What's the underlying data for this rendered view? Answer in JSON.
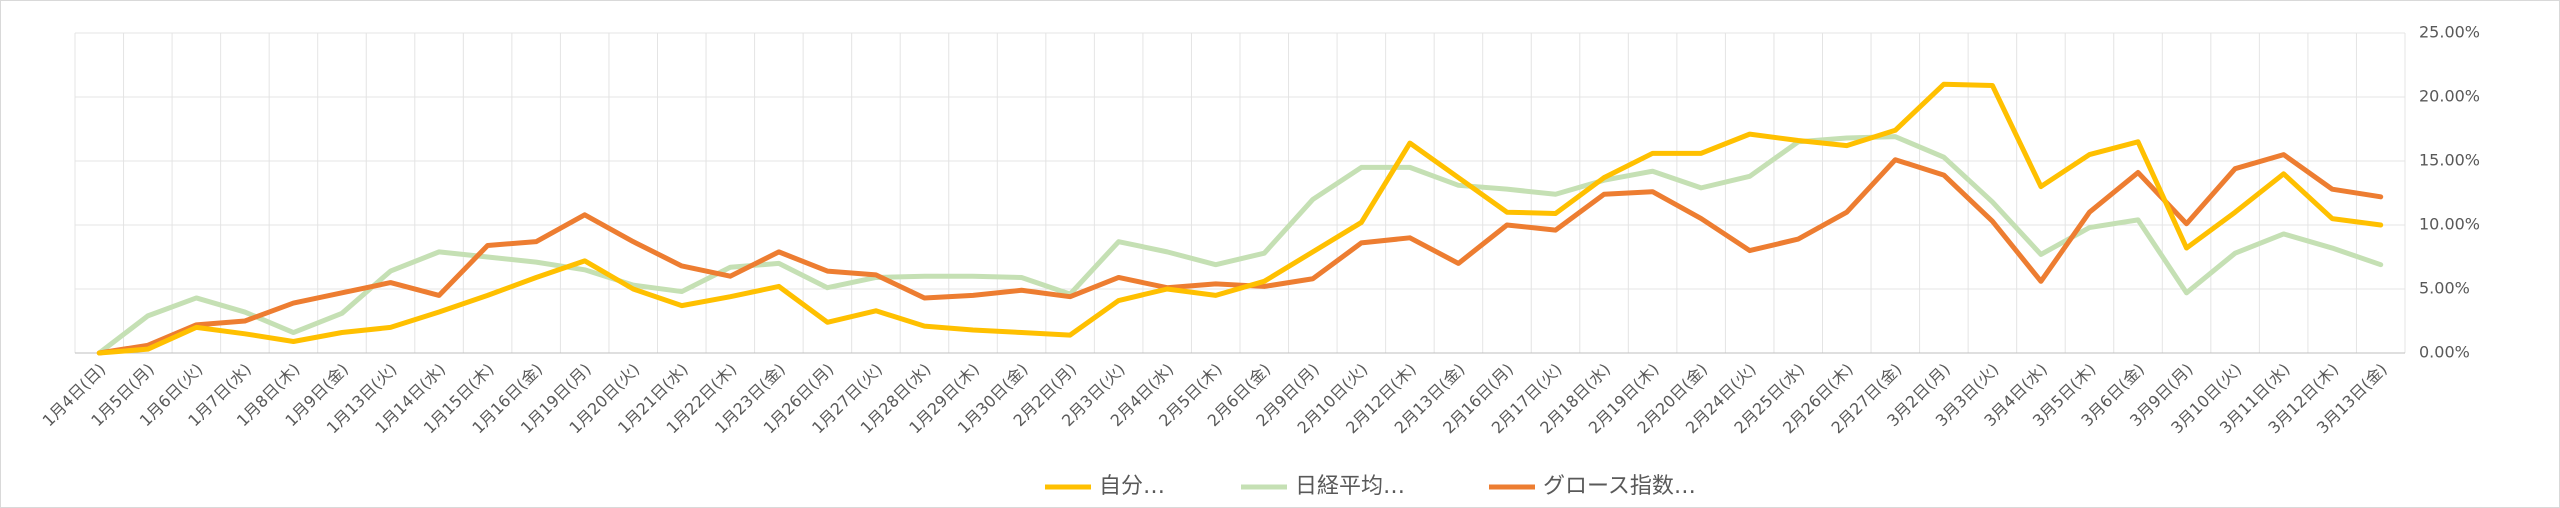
{
  "chart_data": {
    "type": "line",
    "categories": [
      "1月4日(日)",
      "1月5日(月)",
      "1月6日(火)",
      "1月7日(水)",
      "1月8日(木)",
      "1月9日(金)",
      "1月13日(火)",
      "1月14日(水)",
      "1月15日(木)",
      "1月16日(金)",
      "1月19日(月)",
      "1月20日(火)",
      "1月21日(水)",
      "1月22日(木)",
      "1月23日(金)",
      "1月26日(月)",
      "1月27日(火)",
      "1月28日(水)",
      "1月29日(木)",
      "1月30日(金)",
      "2月2日(月)",
      "2月3日(火)",
      "2月4日(水)",
      "2月5日(木)",
      "2月6日(金)",
      "2月9日(月)",
      "2月10日(火)",
      "2月12日(木)",
      "2月13日(金)",
      "2月16日(月)",
      "2月17日(火)",
      "2月18日(水)",
      "2月19日(木)",
      "2月20日(金)",
      "2月24日(火)",
      "2月25日(水)",
      "2月26日(木)",
      "2月27日(金)",
      "3月2日(月)",
      "3月3日(火)",
      "3月4日(水)",
      "3月5日(木)",
      "3月6日(金)",
      "3月9日(月)",
      "3月10日(火)",
      "3月11日(水)",
      "3月12日(木)",
      "3月13日(金)"
    ],
    "series": [
      {
        "name": "自分…",
        "color": "#FFC000",
        "values": [
          0,
          0.3,
          2.0,
          1.5,
          0.9,
          1.6,
          2.0,
          3.2,
          4.5,
          5.9,
          7.2,
          5.0,
          3.7,
          4.4,
          5.2,
          2.4,
          3.3,
          2.1,
          1.8,
          1.6,
          1.4,
          4.1,
          5.0,
          4.5,
          5.6,
          7.9,
          10.2,
          16.4,
          13.7,
          11.0,
          10.9,
          13.7,
          15.6,
          15.6,
          17.1,
          16.6,
          16.2,
          17.4,
          21.0,
          20.9,
          13.0,
          15.5,
          16.5,
          8.2,
          11.0,
          14.0,
          10.5,
          10.0
        ]
      },
      {
        "name": "日経平均…",
        "color": "#C5E0B4",
        "values": [
          0,
          2.9,
          4.3,
          3.2,
          1.6,
          3.1,
          6.4,
          7.9,
          7.5,
          7.1,
          6.5,
          5.3,
          4.8,
          6.7,
          7.0,
          5.1,
          5.9,
          6.0,
          6.0,
          5.9,
          4.6,
          8.7,
          7.9,
          6.9,
          7.8,
          12.0,
          14.5,
          14.5,
          13.1,
          12.8,
          12.4,
          13.5,
          14.2,
          12.9,
          13.8,
          16.5,
          16.8,
          16.9,
          15.3,
          11.8,
          7.7,
          9.8,
          10.4,
          4.7,
          7.8,
          9.3,
          8.2,
          6.9
        ]
      },
      {
        "name": "グロース指数…",
        "color": "#ED7D31",
        "values": [
          0,
          0.6,
          2.2,
          2.5,
          3.9,
          4.7,
          5.5,
          4.5,
          8.4,
          8.7,
          10.8,
          8.7,
          6.8,
          6.0,
          7.9,
          6.4,
          6.1,
          4.3,
          4.5,
          4.9,
          4.4,
          5.9,
          5.1,
          5.4,
          5.2,
          5.8,
          8.6,
          9.0,
          7.0,
          10.0,
          9.6,
          12.4,
          12.6,
          10.5,
          8.0,
          8.9,
          11.0,
          15.1,
          13.9,
          10.3,
          5.6,
          11.0,
          14.1,
          10.1,
          14.4,
          15.5,
          12.8,
          12.2
        ]
      }
    ],
    "ylim": [
      0,
      25
    ],
    "yticks": [
      {
        "value": 0,
        "label": "0.00%"
      },
      {
        "value": 5,
        "label": "5.00%"
      },
      {
        "value": 10,
        "label": "10.00%"
      },
      {
        "value": 15,
        "label": "15.00%"
      },
      {
        "value": 20,
        "label": "20.00%"
      },
      {
        "value": 25,
        "label": "25.00%"
      }
    ],
    "grid": true,
    "legend": "bottom"
  }
}
